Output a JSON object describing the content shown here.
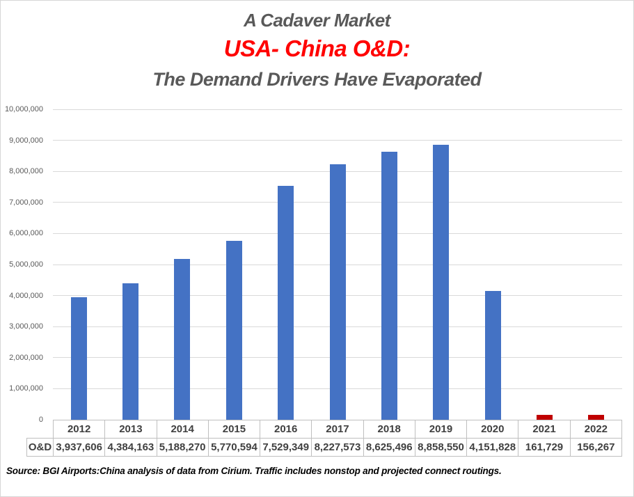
{
  "titles": {
    "line1": "A Cadaver Market",
    "line2": "USA- China O&D:",
    "line3": "The Demand Drivers Have Evaporated"
  },
  "chart_data": {
    "type": "bar",
    "title": "A Cadaver Market — USA- China O&D: The Demand Drivers Have Evaporated",
    "categories": [
      "2012",
      "2013",
      "2014",
      "2015",
      "2016",
      "2017",
      "2018",
      "2019",
      "2020",
      "2021",
      "2022"
    ],
    "series": [
      {
        "name": "O&D",
        "values": [
          3937606,
          4384163,
          5188270,
          5770594,
          7529349,
          8227573,
          8625496,
          8858550,
          4151828,
          161729,
          156267
        ]
      }
    ],
    "bar_colors": [
      "#4472C4",
      "#4472C4",
      "#4472C4",
      "#4472C4",
      "#4472C4",
      "#4472C4",
      "#4472C4",
      "#4472C4",
      "#4472C4",
      "#C00000",
      "#C00000"
    ],
    "xlabel": "",
    "ylabel": "",
    "ylim": [
      0,
      10000000
    ],
    "ytick_interval": 1000000,
    "ytick_labels": [
      "0",
      "1,000,000",
      "2,000,000",
      "3,000,000",
      "4,000,000",
      "5,000,000",
      "6,000,000",
      "7,000,000",
      "8,000,000",
      "9,000,000",
      "10,000,000"
    ],
    "grid": true,
    "legend": "none",
    "data_table_shown": true
  },
  "table": {
    "row_header": "O&D",
    "columns": [
      "2012",
      "2013",
      "2014",
      "2015",
      "2016",
      "2017",
      "2018",
      "2019",
      "2020",
      "2021",
      "2022"
    ],
    "values": [
      "3,937,606",
      "4,384,163",
      "5,188,270",
      "5,770,594",
      "7,529,349",
      "8,227,573",
      "8,625,496",
      "8,858,550",
      "4,151,828",
      "161,729",
      "156,267"
    ]
  },
  "footer": {
    "source": "Source: BGI Airports:China analysis of data from Cirium. Traffic includes nonstop and projected connect routings."
  },
  "colors": {
    "bar_blue": "#4472C4",
    "bar_red": "#C00000",
    "title_gray": "#595959",
    "title_red": "#FF0000",
    "gridline": "#D9D9D9",
    "table_border": "#BFBFBF",
    "table_text": "#404040"
  }
}
